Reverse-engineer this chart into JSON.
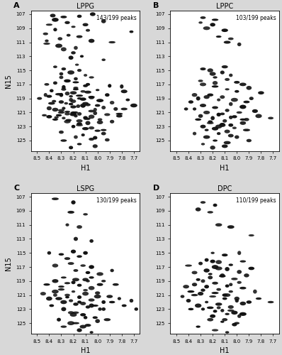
{
  "panels": [
    {
      "label": "A",
      "title": "LPPG",
      "peak_text": "143/199 peaks",
      "xlim": [
        8.55,
        7.65
      ],
      "ylim": [
        126.5,
        106.5
      ],
      "xticks": [
        8.5,
        8.4,
        8.3,
        8.2,
        8.1,
        8.0,
        7.9,
        7.8,
        7.7
      ],
      "yticks": [
        107,
        109,
        111,
        113,
        115,
        117,
        119,
        121,
        123,
        125
      ],
      "ylabel": "N15",
      "xlabel": "H1"
    },
    {
      "label": "B",
      "title": "LPPC",
      "peak_text": "103/199 peaks",
      "xlim": [
        8.55,
        7.65
      ],
      "ylim": [
        126.5,
        106.5
      ],
      "xticks": [
        8.5,
        8.4,
        8.3,
        8.2,
        8.1,
        8.0,
        7.9,
        7.8,
        7.7
      ],
      "yticks": [
        107,
        109,
        111,
        113,
        115,
        117,
        119,
        121,
        123,
        125
      ],
      "ylabel": "N15",
      "xlabel": "H1"
    },
    {
      "label": "C",
      "title": "LSPG",
      "peak_text": "130/199 peaks",
      "xlim": [
        8.55,
        7.65
      ],
      "ylim": [
        126.5,
        106.5
      ],
      "xticks": [
        8.5,
        8.4,
        8.3,
        8.2,
        8.1,
        8.0,
        7.9,
        7.8,
        7.7
      ],
      "yticks": [
        107,
        109,
        111,
        113,
        115,
        117,
        119,
        121,
        123,
        125
      ],
      "ylabel": "N15",
      "xlabel": "H1"
    },
    {
      "label": "D",
      "title": "DPC",
      "peak_text": "110/199 peaks",
      "xlim": [
        8.55,
        7.65
      ],
      "ylim": [
        126.5,
        106.5
      ],
      "xticks": [
        8.5,
        8.4,
        8.3,
        8.2,
        8.1,
        8.0,
        7.9,
        7.8,
        7.7
      ],
      "yticks": [
        107,
        109,
        111,
        113,
        115,
        117,
        119,
        121,
        123,
        125
      ],
      "ylabel": "N15",
      "xlabel": "H1"
    }
  ],
  "peaks_A": [
    [
      8.37,
      107.2
    ],
    [
      8.28,
      107.4
    ],
    [
      8.15,
      107.3
    ],
    [
      8.04,
      107.0
    ],
    [
      8.4,
      108.5
    ],
    [
      8.2,
      108.8
    ],
    [
      8.35,
      109.2
    ],
    [
      8.08,
      109.3
    ],
    [
      7.72,
      109.5
    ],
    [
      8.43,
      109.8
    ],
    [
      8.24,
      110.0
    ],
    [
      8.15,
      110.2
    ],
    [
      8.31,
      110.5
    ],
    [
      8.05,
      110.8
    ],
    [
      8.42,
      111.2
    ],
    [
      7.88,
      111.0
    ],
    [
      8.18,
      111.8
    ],
    [
      8.28,
      112.0
    ],
    [
      8.13,
      113.0
    ],
    [
      8.22,
      113.2
    ],
    [
      7.95,
      113.5
    ],
    [
      8.17,
      114.2
    ],
    [
      8.35,
      114.5
    ],
    [
      8.28,
      114.8
    ],
    [
      8.15,
      115.0
    ],
    [
      8.22,
      115.3
    ],
    [
      8.3,
      115.5
    ],
    [
      8.1,
      115.7
    ],
    [
      8.05,
      116.0
    ],
    [
      8.18,
      116.2
    ],
    [
      8.25,
      116.5
    ],
    [
      8.35,
      116.8
    ],
    [
      8.42,
      117.0
    ],
    [
      8.1,
      117.2
    ],
    [
      8.18,
      117.5
    ],
    [
      8.28,
      117.7
    ],
    [
      8.38,
      117.9
    ],
    [
      7.9,
      117.2
    ],
    [
      8.0,
      117.8
    ],
    [
      7.8,
      117.3
    ],
    [
      8.12,
      118.0
    ],
    [
      8.2,
      118.2
    ],
    [
      8.3,
      118.5
    ],
    [
      8.4,
      118.7
    ],
    [
      8.05,
      118.9
    ],
    [
      7.92,
      118.5
    ],
    [
      7.78,
      118.0
    ],
    [
      8.15,
      119.0
    ],
    [
      8.22,
      119.2
    ],
    [
      8.3,
      119.5
    ],
    [
      8.38,
      119.7
    ],
    [
      8.08,
      119.9
    ],
    [
      7.98,
      119.3
    ],
    [
      7.88,
      119.6
    ],
    [
      7.75,
      119.2
    ],
    [
      8.48,
      119.0
    ],
    [
      8.43,
      118.5
    ],
    [
      8.12,
      120.0
    ],
    [
      8.2,
      120.2
    ],
    [
      8.28,
      120.4
    ],
    [
      8.35,
      120.6
    ],
    [
      8.05,
      120.8
    ],
    [
      7.95,
      120.3
    ],
    [
      7.85,
      120.5
    ],
    [
      7.7,
      120.0
    ],
    [
      8.18,
      121.0
    ],
    [
      8.25,
      121.2
    ],
    [
      8.32,
      121.4
    ],
    [
      8.4,
      121.6
    ],
    [
      8.1,
      121.8
    ],
    [
      8.02,
      121.1
    ],
    [
      7.92,
      121.3
    ],
    [
      7.82,
      121.5
    ],
    [
      8.28,
      121.8
    ],
    [
      8.35,
      122.0
    ],
    [
      8.15,
      122.2
    ],
    [
      8.08,
      122.5
    ],
    [
      7.98,
      122.0
    ],
    [
      7.88,
      122.3
    ],
    [
      8.2,
      123.0
    ],
    [
      8.1,
      123.3
    ],
    [
      8.0,
      123.6
    ],
    [
      8.3,
      123.8
    ],
    [
      7.95,
      124.0
    ],
    [
      8.18,
      124.5
    ],
    [
      8.05,
      124.8
    ],
    [
      8.28,
      125.0
    ],
    [
      8.15,
      125.5
    ],
    [
      8.02,
      125.8
    ],
    [
      8.22,
      126.0
    ],
    [
      8.35,
      107.8
    ],
    [
      8.25,
      108.2
    ],
    [
      8.1,
      108.5
    ],
    [
      7.95,
      108.0
    ],
    [
      8.42,
      110.8
    ],
    [
      8.32,
      111.5
    ],
    [
      8.2,
      112.5
    ],
    [
      8.3,
      116.0
    ],
    [
      8.18,
      116.7
    ],
    [
      8.08,
      117.0
    ],
    [
      8.25,
      118.3
    ],
    [
      8.15,
      118.6
    ],
    [
      8.05,
      118.8
    ],
    [
      8.22,
      119.8
    ],
    [
      8.12,
      120.1
    ],
    [
      8.02,
      120.6
    ],
    [
      8.18,
      121.5
    ],
    [
      8.08,
      121.9
    ],
    [
      7.98,
      122.4
    ],
    [
      8.15,
      122.8
    ],
    [
      8.05,
      123.2
    ],
    [
      7.95,
      123.5
    ],
    [
      8.12,
      124.2
    ],
    [
      8.02,
      124.6
    ],
    [
      7.92,
      124.9
    ],
    [
      8.2,
      119.4
    ],
    [
      8.1,
      119.7
    ],
    [
      8.0,
      120.0
    ],
    [
      8.25,
      120.9
    ],
    [
      8.15,
      121.2
    ],
    [
      8.05,
      121.6
    ],
    [
      8.3,
      121.0
    ],
    [
      8.2,
      121.3
    ],
    [
      8.1,
      121.7
    ],
    [
      8.35,
      122.0
    ],
    [
      8.25,
      122.3
    ],
    [
      8.15,
      122.6
    ],
    [
      8.28,
      117.4
    ],
    [
      8.18,
      117.7
    ],
    [
      8.08,
      118.1
    ],
    [
      8.32,
      118.4
    ],
    [
      8.22,
      118.7
    ],
    [
      8.12,
      119.1
    ],
    [
      8.36,
      119.4
    ],
    [
      8.26,
      119.7
    ],
    [
      8.16,
      120.1
    ],
    [
      8.4,
      120.4
    ],
    [
      8.3,
      120.7
    ],
    [
      8.2,
      121.1
    ],
    [
      8.44,
      121.4
    ],
    [
      8.34,
      121.7
    ],
    [
      8.24,
      122.1
    ],
    [
      7.82,
      121.2
    ],
    [
      7.78,
      120.5
    ]
  ],
  "peaks_B": [
    [
      8.28,
      107.5
    ],
    [
      8.18,
      107.8
    ],
    [
      8.3,
      108.2
    ],
    [
      8.2,
      108.5
    ],
    [
      8.25,
      109.0
    ],
    [
      8.1,
      109.3
    ],
    [
      8.15,
      110.2
    ],
    [
      8.05,
      110.5
    ],
    [
      8.08,
      111.0
    ],
    [
      7.98,
      111.3
    ],
    [
      8.22,
      115.0
    ],
    [
      8.12,
      115.3
    ],
    [
      8.05,
      115.7
    ],
    [
      8.18,
      116.0
    ],
    [
      8.08,
      116.3
    ],
    [
      8.0,
      116.7
    ],
    [
      8.28,
      117.0
    ],
    [
      8.18,
      117.3
    ],
    [
      8.08,
      117.7
    ],
    [
      8.0,
      118.0
    ],
    [
      7.9,
      117.5
    ],
    [
      7.8,
      118.2
    ],
    [
      8.22,
      118.5
    ],
    [
      8.12,
      118.8
    ],
    [
      8.02,
      119.2
    ],
    [
      7.92,
      119.5
    ],
    [
      8.32,
      119.0
    ],
    [
      8.28,
      120.0
    ],
    [
      8.18,
      120.3
    ],
    [
      8.08,
      120.7
    ],
    [
      7.98,
      121.0
    ],
    [
      8.35,
      120.5
    ],
    [
      8.25,
      121.0
    ],
    [
      8.15,
      121.3
    ],
    [
      8.05,
      121.7
    ],
    [
      7.95,
      122.0
    ],
    [
      8.3,
      121.5
    ],
    [
      8.2,
      121.8
    ],
    [
      8.1,
      122.2
    ],
    [
      8.22,
      122.5
    ],
    [
      8.12,
      122.8
    ],
    [
      8.02,
      123.2
    ],
    [
      7.92,
      123.5
    ],
    [
      8.28,
      123.0
    ],
    [
      8.18,
      123.3
    ],
    [
      8.08,
      123.7
    ],
    [
      8.15,
      124.0
    ],
    [
      8.05,
      124.3
    ],
    [
      8.25,
      124.5
    ],
    [
      8.18,
      125.0
    ],
    [
      8.08,
      125.3
    ],
    [
      8.28,
      125.5
    ],
    [
      8.32,
      122.0
    ],
    [
      8.22,
      122.3
    ],
    [
      8.12,
      122.7
    ],
    [
      7.82,
      121.5
    ],
    [
      7.72,
      121.8
    ],
    [
      8.38,
      119.5
    ],
    [
      8.35,
      118.5
    ],
    [
      8.42,
      120.5
    ],
    [
      8.05,
      119.8
    ],
    [
      7.95,
      120.2
    ],
    [
      7.85,
      120.8
    ],
    [
      8.12,
      121.2
    ],
    [
      8.02,
      121.6
    ],
    [
      7.92,
      122.0
    ],
    [
      8.15,
      119.2
    ],
    [
      8.25,
      118.8
    ],
    [
      7.88,
      119.0
    ],
    [
      8.18,
      116.8
    ],
    [
      8.3,
      116.5
    ],
    [
      7.95,
      117.0
    ],
    [
      8.1,
      114.5
    ],
    [
      8.2,
      115.5
    ],
    [
      8.28,
      114.8
    ],
    [
      7.95,
      122.5
    ],
    [
      8.05,
      122.8
    ],
    [
      8.15,
      123.0
    ],
    [
      8.25,
      123.5
    ],
    [
      8.35,
      124.0
    ],
    [
      8.0,
      124.5
    ],
    [
      8.1,
      125.8
    ],
    [
      8.2,
      126.0
    ],
    [
      7.9,
      125.0
    ]
  ],
  "peaks_C": [
    [
      8.35,
      107.3
    ],
    [
      8.2,
      107.8
    ],
    [
      8.22,
      109.2
    ],
    [
      8.1,
      109.5
    ],
    [
      8.25,
      111.0
    ],
    [
      8.15,
      111.3
    ],
    [
      8.18,
      113.0
    ],
    [
      8.05,
      113.3
    ],
    [
      8.2,
      114.8
    ],
    [
      8.1,
      115.0
    ],
    [
      8.3,
      115.2
    ],
    [
      8.4,
      115.0
    ],
    [
      8.15,
      115.5
    ],
    [
      8.25,
      115.8
    ],
    [
      8.22,
      116.5
    ],
    [
      8.12,
      116.8
    ],
    [
      8.05,
      117.0
    ],
    [
      8.35,
      116.8
    ],
    [
      8.18,
      117.5
    ],
    [
      8.08,
      117.8
    ],
    [
      7.98,
      118.0
    ],
    [
      7.88,
      117.5
    ],
    [
      8.28,
      118.5
    ],
    [
      8.18,
      118.8
    ],
    [
      8.08,
      119.0
    ],
    [
      7.98,
      119.5
    ],
    [
      8.35,
      119.0
    ],
    [
      8.25,
      119.3
    ],
    [
      8.15,
      119.6
    ],
    [
      8.05,
      120.0
    ],
    [
      8.3,
      120.2
    ],
    [
      8.2,
      120.5
    ],
    [
      8.1,
      120.8
    ],
    [
      8.0,
      121.2
    ],
    [
      8.25,
      121.0
    ],
    [
      8.15,
      121.3
    ],
    [
      8.05,
      121.7
    ],
    [
      7.95,
      122.0
    ],
    [
      8.32,
      121.5
    ],
    [
      8.22,
      121.8
    ],
    [
      8.12,
      122.2
    ],
    [
      8.02,
      122.5
    ],
    [
      8.28,
      122.0
    ],
    [
      8.18,
      122.3
    ],
    [
      8.08,
      122.7
    ],
    [
      7.98,
      123.0
    ],
    [
      8.22,
      123.5
    ],
    [
      8.12,
      123.8
    ],
    [
      8.02,
      124.2
    ],
    [
      7.92,
      124.5
    ],
    [
      8.18,
      125.0
    ],
    [
      8.08,
      125.3
    ],
    [
      8.28,
      125.5
    ],
    [
      8.15,
      126.0
    ],
    [
      8.05,
      126.3
    ],
    [
      8.35,
      120.5
    ],
    [
      8.45,
      120.8
    ],
    [
      8.42,
      119.5
    ],
    [
      7.82,
      121.5
    ],
    [
      7.72,
      121.8
    ],
    [
      8.05,
      118.5
    ],
    [
      7.95,
      119.0
    ],
    [
      7.85,
      119.5
    ],
    [
      8.1,
      120.3
    ],
    [
      8.0,
      120.7
    ],
    [
      7.9,
      121.2
    ],
    [
      8.15,
      122.0
    ],
    [
      8.05,
      122.5
    ],
    [
      7.95,
      123.0
    ],
    [
      8.2,
      123.8
    ],
    [
      8.1,
      124.2
    ],
    [
      8.0,
      124.7
    ],
    [
      8.25,
      121.3
    ],
    [
      8.35,
      121.0
    ],
    [
      8.4,
      121.5
    ],
    [
      8.3,
      119.8
    ],
    [
      8.2,
      119.2
    ],
    [
      8.1,
      118.8
    ],
    [
      8.38,
      122.5
    ],
    [
      8.28,
      123.0
    ],
    [
      8.18,
      123.5
    ],
    [
      8.32,
      124.5
    ],
    [
      8.22,
      125.0
    ],
    [
      8.12,
      125.5
    ],
    [
      7.88,
      122.0
    ],
    [
      7.78,
      122.5
    ],
    [
      7.68,
      123.0
    ]
  ],
  "peaks_D": [
    [
      8.28,
      107.8
    ],
    [
      8.18,
      108.2
    ],
    [
      8.32,
      108.8
    ],
    [
      8.22,
      109.2
    ],
    [
      8.15,
      111.0
    ],
    [
      8.05,
      111.3
    ],
    [
      7.88,
      112.5
    ],
    [
      8.2,
      115.0
    ],
    [
      8.1,
      115.3
    ],
    [
      7.98,
      115.0
    ],
    [
      8.25,
      116.0
    ],
    [
      8.15,
      116.3
    ],
    [
      8.05,
      116.7
    ],
    [
      7.95,
      116.2
    ],
    [
      8.18,
      117.0
    ],
    [
      8.08,
      117.3
    ],
    [
      7.98,
      117.7
    ],
    [
      7.88,
      117.2
    ],
    [
      8.22,
      118.0
    ],
    [
      8.12,
      118.3
    ],
    [
      8.02,
      118.7
    ],
    [
      7.92,
      118.2
    ],
    [
      8.28,
      119.0
    ],
    [
      8.18,
      119.3
    ],
    [
      8.08,
      119.7
    ],
    [
      7.98,
      119.2
    ],
    [
      8.35,
      119.5
    ],
    [
      8.25,
      119.8
    ],
    [
      8.15,
      120.2
    ],
    [
      8.05,
      120.5
    ],
    [
      8.3,
      120.8
    ],
    [
      8.2,
      121.2
    ],
    [
      8.1,
      121.5
    ],
    [
      8.0,
      121.8
    ],
    [
      8.25,
      122.0
    ],
    [
      8.15,
      122.3
    ],
    [
      8.05,
      122.7
    ],
    [
      7.95,
      122.2
    ],
    [
      8.32,
      122.5
    ],
    [
      8.22,
      122.8
    ],
    [
      8.12,
      123.2
    ],
    [
      8.02,
      123.5
    ],
    [
      8.28,
      123.0
    ],
    [
      8.18,
      123.3
    ],
    [
      8.08,
      123.7
    ],
    [
      7.98,
      124.0
    ],
    [
      8.22,
      124.5
    ],
    [
      8.12,
      124.8
    ],
    [
      8.02,
      125.2
    ],
    [
      8.32,
      125.5
    ],
    [
      8.18,
      126.0
    ],
    [
      8.08,
      126.3
    ],
    [
      8.38,
      120.5
    ],
    [
      8.42,
      119.8
    ],
    [
      8.45,
      121.2
    ],
    [
      7.82,
      121.5
    ],
    [
      7.72,
      122.0
    ],
    [
      8.05,
      119.5
    ],
    [
      7.95,
      120.0
    ],
    [
      7.85,
      120.5
    ],
    [
      8.1,
      121.0
    ],
    [
      8.0,
      121.5
    ],
    [
      7.9,
      122.0
    ],
    [
      8.15,
      122.8
    ],
    [
      8.05,
      123.2
    ],
    [
      7.95,
      123.7
    ],
    [
      8.2,
      124.0
    ],
    [
      8.1,
      124.5
    ],
    [
      8.0,
      125.0
    ],
    [
      8.35,
      121.0
    ],
    [
      8.4,
      121.8
    ],
    [
      8.38,
      123.0
    ],
    [
      8.28,
      120.3
    ],
    [
      8.18,
      120.7
    ],
    [
      8.08,
      121.0
    ],
    [
      8.32,
      118.8
    ],
    [
      8.22,
      118.5
    ],
    [
      8.12,
      118.2
    ],
    [
      8.25,
      117.5
    ],
    [
      8.35,
      117.8
    ],
    [
      8.15,
      117.2
    ],
    [
      8.3,
      116.5
    ],
    [
      8.4,
      116.8
    ],
    [
      8.2,
      116.2
    ]
  ],
  "background_color": "#d8d8d8",
  "plot_bg": "#ffffff",
  "peak_color": "#111111",
  "label_fontsize": 7,
  "title_fontsize": 7,
  "tick_fontsize": 5,
  "annotation_fontsize": 5.5
}
